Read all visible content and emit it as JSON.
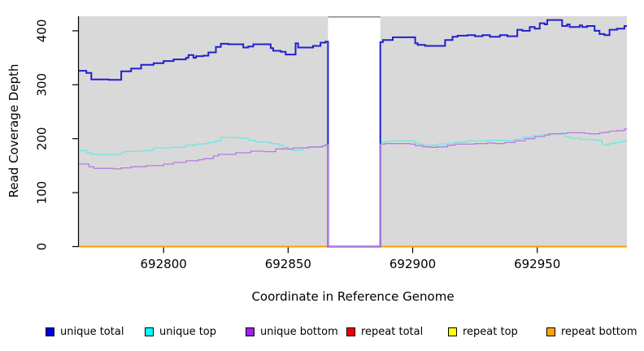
{
  "chart_data": {
    "type": "line",
    "style": "step",
    "title": "",
    "xlabel": "Coordinate in Reference Genome",
    "ylabel": "Read Coverage Depth",
    "xlim": [
      692766,
      692986
    ],
    "ylim": [
      0,
      427
    ],
    "x_ticks": [
      692800,
      692850,
      692900,
      692950
    ],
    "y_ticks": [
      0,
      100,
      200,
      300,
      400
    ],
    "grid": false,
    "plot_bg": "#d9d9d9",
    "gap_region": {
      "x_start": 692866,
      "x_end": 692887,
      "fill": "#ffffff",
      "cap_color": "#8f8f8f"
    },
    "legend_position": "bottom",
    "series": [
      {
        "name": "repeat total",
        "line_color": "#dd0000",
        "legend_fill": "#ee0000",
        "line_width": 1.3,
        "points": [
          [
            692766,
            0
          ],
          [
            692985,
            0
          ]
        ]
      },
      {
        "name": "repeat top",
        "line_color": "#ffff00",
        "legend_fill": "#ffff00",
        "line_width": 1.3,
        "points": [
          [
            692766,
            0
          ],
          [
            692985,
            0
          ]
        ]
      },
      {
        "name": "repeat bottom",
        "line_color": "#ff9d00",
        "legend_fill": "#ffa500",
        "line_width": 2,
        "points": [
          [
            692766,
            0
          ],
          [
            692985,
            0
          ]
        ]
      },
      {
        "name": "unique top",
        "line_color": "#6fe6e3",
        "legend_fill": "#00ffff",
        "line_width": 1.3,
        "points": [
          [
            692766,
            178
          ],
          [
            692769,
            174
          ],
          [
            692771,
            171
          ],
          [
            692780,
            171
          ],
          [
            692783,
            174
          ],
          [
            692784,
            176
          ],
          [
            692788,
            177
          ],
          [
            692793,
            178
          ],
          [
            692796,
            183
          ],
          [
            692803,
            184
          ],
          [
            692809,
            188
          ],
          [
            692813,
            190
          ],
          [
            692816,
            191
          ],
          [
            692818,
            193
          ],
          [
            692821,
            196
          ],
          [
            692823,
            202
          ],
          [
            692828,
            202
          ],
          [
            692830,
            201
          ],
          [
            692834,
            197
          ],
          [
            692837,
            194
          ],
          [
            692843,
            191
          ],
          [
            692846,
            188
          ],
          [
            692848,
            184
          ],
          [
            692850,
            180
          ],
          [
            692852,
            178
          ],
          [
            692854,
            179
          ],
          [
            692856,
            183
          ],
          [
            692860,
            184
          ],
          [
            692863,
            186
          ],
          [
            692865,
            188
          ],
          [
            692866,
            0
          ],
          [
            692887,
            193
          ],
          [
            692889,
            195
          ],
          [
            692891,
            196
          ],
          [
            692896,
            196
          ],
          [
            692901,
            193
          ],
          [
            692902,
            190
          ],
          [
            692904,
            188
          ],
          [
            692909,
            187
          ],
          [
            692910,
            190
          ],
          [
            692914,
            192
          ],
          [
            692917,
            194
          ],
          [
            692922,
            196
          ],
          [
            692927,
            196
          ],
          [
            692931,
            197
          ],
          [
            692936,
            197
          ],
          [
            692941,
            199
          ],
          [
            692944,
            203
          ],
          [
            692948,
            205
          ],
          [
            692951,
            207
          ],
          [
            692954,
            209
          ],
          [
            692957,
            210
          ],
          [
            692961,
            204
          ],
          [
            692963,
            201
          ],
          [
            692967,
            199
          ],
          [
            692970,
            198
          ],
          [
            692974,
            197
          ],
          [
            692976,
            189
          ],
          [
            692978,
            188
          ],
          [
            692979,
            191
          ],
          [
            692981,
            193
          ],
          [
            692984,
            195
          ],
          [
            692985,
            196
          ]
        ]
      },
      {
        "name": "unique total",
        "line_color": "#2121cd",
        "legend_fill": "#0000e1",
        "line_width": 2,
        "points": [
          [
            692766,
            326
          ],
          [
            692769,
            322
          ],
          [
            692771,
            310
          ],
          [
            692778,
            309
          ],
          [
            692783,
            325
          ],
          [
            692787,
            330
          ],
          [
            692791,
            337
          ],
          [
            692796,
            340
          ],
          [
            692800,
            344
          ],
          [
            692804,
            347
          ],
          [
            692809,
            350
          ],
          [
            692810,
            355
          ],
          [
            692812,
            350
          ],
          [
            692813,
            353
          ],
          [
            692816,
            354
          ],
          [
            692818,
            360
          ],
          [
            692821,
            370
          ],
          [
            692823,
            376
          ],
          [
            692826,
            375
          ],
          [
            692832,
            369
          ],
          [
            692834,
            371
          ],
          [
            692836,
            375
          ],
          [
            692841,
            375
          ],
          [
            692843,
            368
          ],
          [
            692844,
            363
          ],
          [
            692847,
            361
          ],
          [
            692849,
            356
          ],
          [
            692852,
            356
          ],
          [
            692853,
            377
          ],
          [
            692854,
            369
          ],
          [
            692858,
            369
          ],
          [
            692860,
            372
          ],
          [
            692863,
            378
          ],
          [
            692865,
            380
          ],
          [
            692866,
            0
          ],
          [
            692887,
            379
          ],
          [
            692888,
            383
          ],
          [
            692892,
            388
          ],
          [
            692900,
            388
          ],
          [
            692901,
            377
          ],
          [
            692902,
            374
          ],
          [
            692905,
            372
          ],
          [
            692912,
            372
          ],
          [
            692913,
            383
          ],
          [
            692916,
            389
          ],
          [
            692918,
            391
          ],
          [
            692922,
            392
          ],
          [
            692925,
            390
          ],
          [
            692928,
            392
          ],
          [
            692931,
            389
          ],
          [
            692935,
            392
          ],
          [
            692938,
            390
          ],
          [
            692942,
            402
          ],
          [
            692944,
            400
          ],
          [
            692947,
            407
          ],
          [
            692949,
            404
          ],
          [
            692951,
            414
          ],
          [
            692953,
            412
          ],
          [
            692954,
            420
          ],
          [
            692957,
            420
          ],
          [
            692960,
            409
          ],
          [
            692962,
            412
          ],
          [
            692963,
            407
          ],
          [
            692965,
            407
          ],
          [
            692967,
            410
          ],
          [
            692968,
            407
          ],
          [
            692970,
            409
          ],
          [
            692973,
            400
          ],
          [
            692975,
            394
          ],
          [
            692977,
            392
          ],
          [
            692979,
            402
          ],
          [
            692982,
            404
          ],
          [
            692985,
            409
          ]
        ]
      },
      {
        "name": "unique bottom",
        "line_color": "#b87ce0",
        "legend_fill": "#a020f0",
        "line_width": 1.3,
        "points": [
          [
            692766,
            153
          ],
          [
            692770,
            148
          ],
          [
            692772,
            145
          ],
          [
            692780,
            144
          ],
          [
            692783,
            146
          ],
          [
            692787,
            148
          ],
          [
            692793,
            150
          ],
          [
            692800,
            153
          ],
          [
            692804,
            156
          ],
          [
            692809,
            159
          ],
          [
            692814,
            161
          ],
          [
            692816,
            163
          ],
          [
            692820,
            168
          ],
          [
            692822,
            171
          ],
          [
            692829,
            174
          ],
          [
            692835,
            177
          ],
          [
            692840,
            176
          ],
          [
            692845,
            181
          ],
          [
            692852,
            183
          ],
          [
            692858,
            185
          ],
          [
            692864,
            187
          ],
          [
            692865,
            189
          ],
          [
            692866,
            0
          ],
          [
            692887,
            190
          ],
          [
            692889,
            191
          ],
          [
            692894,
            191
          ],
          [
            692899,
            190
          ],
          [
            692901,
            187
          ],
          [
            692904,
            185
          ],
          [
            692907,
            184
          ],
          [
            692910,
            185
          ],
          [
            692914,
            188
          ],
          [
            692917,
            190
          ],
          [
            692921,
            190
          ],
          [
            692925,
            191
          ],
          [
            692930,
            192
          ],
          [
            692933,
            191
          ],
          [
            692937,
            193
          ],
          [
            692941,
            196
          ],
          [
            692945,
            200
          ],
          [
            692949,
            204
          ],
          [
            692953,
            207
          ],
          [
            692955,
            209
          ],
          [
            692960,
            210
          ],
          [
            692962,
            211
          ],
          [
            692966,
            211
          ],
          [
            692969,
            210
          ],
          [
            692971,
            209
          ],
          [
            692975,
            211
          ],
          [
            692977,
            212
          ],
          [
            692979,
            214
          ],
          [
            692982,
            215
          ],
          [
            692985,
            218
          ]
        ]
      }
    ],
    "legend": [
      {
        "label": "unique total",
        "fill": "#0000e1"
      },
      {
        "label": "unique top",
        "fill": "#00ffff"
      },
      {
        "label": "unique bottom",
        "fill": "#a020f0"
      },
      {
        "label": "repeat total",
        "fill": "#ee0000"
      },
      {
        "label": "repeat top",
        "fill": "#ffff00"
      },
      {
        "label": "repeat bottom",
        "fill": "#ffa500"
      }
    ]
  }
}
